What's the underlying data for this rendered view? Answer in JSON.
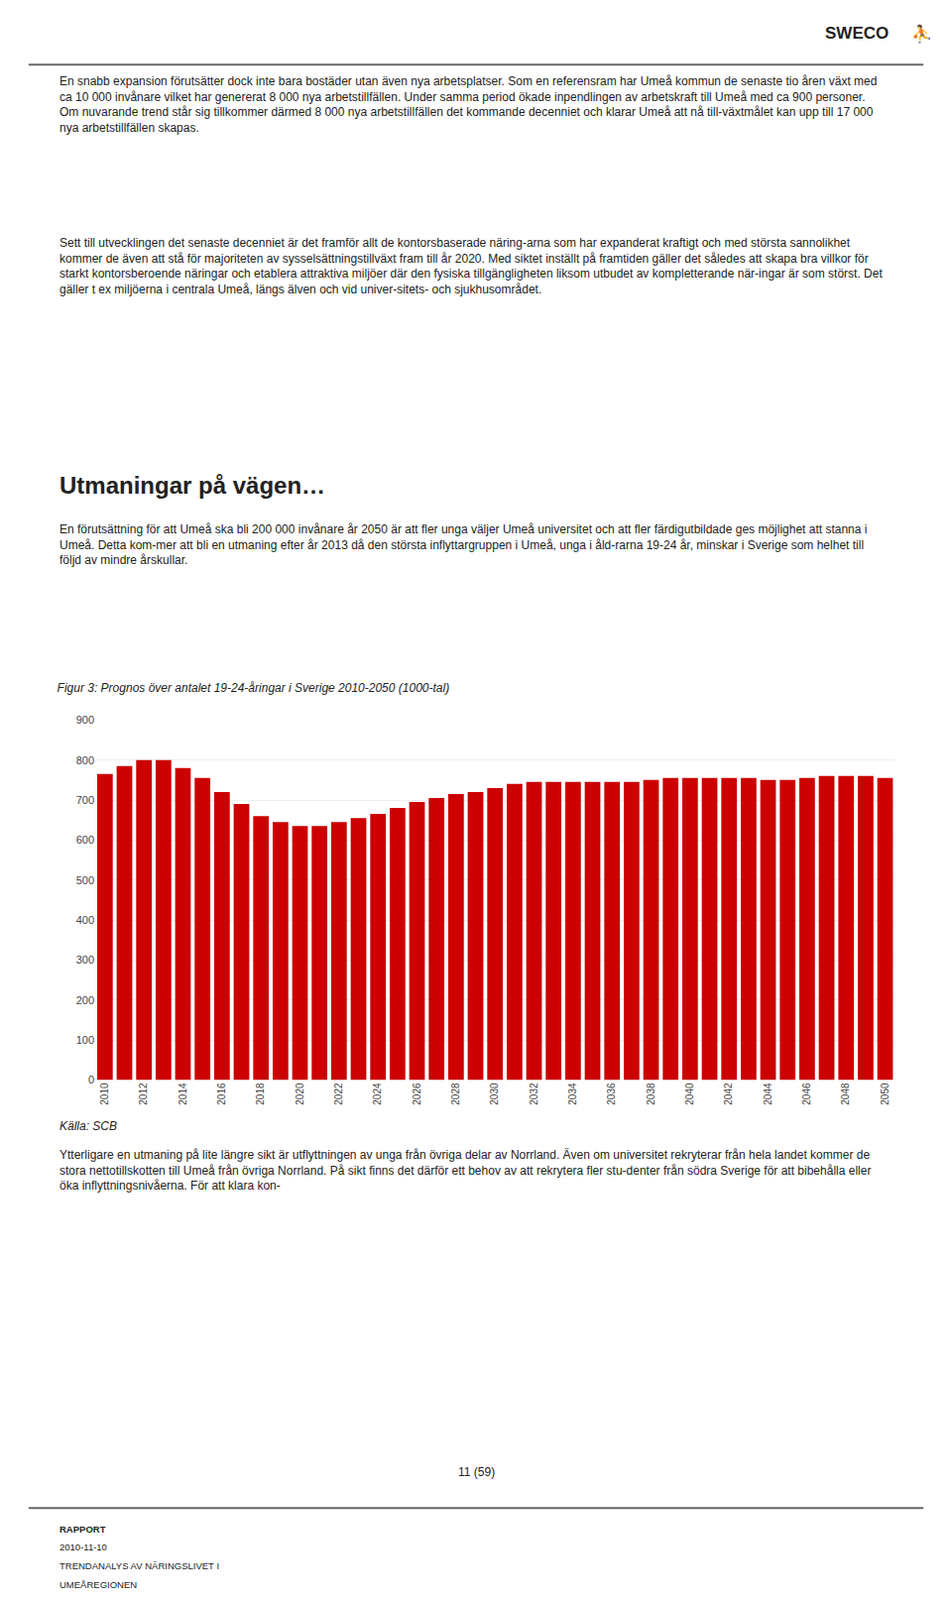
{
  "chart_data": {
    "type": "bar",
    "title": "Figur 3: Prognos över antalet 19-24-åringar i Sverige 2010-2050 (1000-tal)",
    "categories": [
      "2010",
      null,
      "2012",
      null,
      "2014",
      null,
      "2016",
      null,
      "2018",
      null,
      "2020",
      null,
      "2022",
      null,
      "2024",
      null,
      "2026",
      null,
      "2028",
      null,
      "2030",
      null,
      "2032",
      null,
      "2034",
      null,
      "2036",
      null,
      "2038",
      null,
      "2040",
      null,
      "2042",
      null,
      "2044",
      null,
      "2046",
      null,
      "2048",
      null,
      "2050"
    ],
    "values": [
      765,
      785,
      800,
      800,
      780,
      755,
      720,
      690,
      660,
      645,
      635,
      635,
      645,
      655,
      665,
      680,
      695,
      705,
      715,
      720,
      730,
      740,
      745,
      745,
      745,
      745,
      745,
      745,
      750,
      755,
      755,
      755,
      755,
      755,
      750,
      750,
      755,
      760,
      760,
      760,
      755
    ],
    "color": "#CC0000",
    "ylim": [
      0,
      900
    ],
    "yticks": [
      0,
      100,
      200,
      300,
      400,
      500,
      600,
      700,
      800,
      900
    ],
    "grid": true,
    "annotations": [
      "SWECO",
      "⛹",
      "En snabb expansion förutsätter dock inte bara bostäder utan även nya arbetsplatser. Som en referensram har Umeå kommun de senaste tio åren växt med ca 10 000 invånare vilket har genererat 8 000 nya arbetstillfällen. Under samma period ökade inpendlingen av arbetskraft till Umeå med ca 900 personer. Om nuvarande trend står sig tillkommer därmed 8 000 nya arbetstillfällen det kommande decenniet och klarar Umeå att nå till-växtmålet kan upp till 17 000 nya arbetstillfällen skapas.",
      "Sett till utvecklingen det senaste decenniet är det framför allt de kontorsbaserade näring-arna som har expanderat kraftigt och med största sannolikhet kommer de även att stå för majoriteten av sysselsättningstillväxt fram till år 2020. Med siktet inställt på framtiden gäller det således att skapa bra villkor för starkt kontorsberoende näringar och etablera attraktiva miljöer där den fysiska tillgängligheten liksom utbudet av kompletterande när-ingar är som störst. Det gäller t ex miljöerna i centrala Umeå, längs älven och vid univer-sitets- och sjukhusområdet.",
      "Utmaningar på vägen…",
      "En förutsättning för att Umeå ska bli 200 000 invånare år 2050 är att fler unga väljer Umeå universitet och att fler färdigutbildade ges möjlighet att stanna i Umeå. Detta kom-mer att bli en utmaning efter år 2013 då den största inflyttargruppen i Umeå, unga i åld-rarna 19-24 år, minskar i Sverige som helhet till följd av mindre årskullar.",
      "Källa: SCB",
      "Ytterligare en utmaning på lite längre sikt är utflyttningen av unga från övriga delar av Norrland. Även om universitet rekryterar från hela landet kommer de stora nettotillskotten till Umeå från övriga Norrland. På sikt finns det därför ett behov av att rekrytera fler stu-denter från södra Sverige för att bibehålla eller öka inflyttningsnivåerna. För att klara kon-",
      "11 (59)",
      "RAPPORT",
      "2010-11-10",
      "TRENDANALYS AV NÄRINGSLIVET I",
      "UMEÅREGIONEN"
    ]
  }
}
